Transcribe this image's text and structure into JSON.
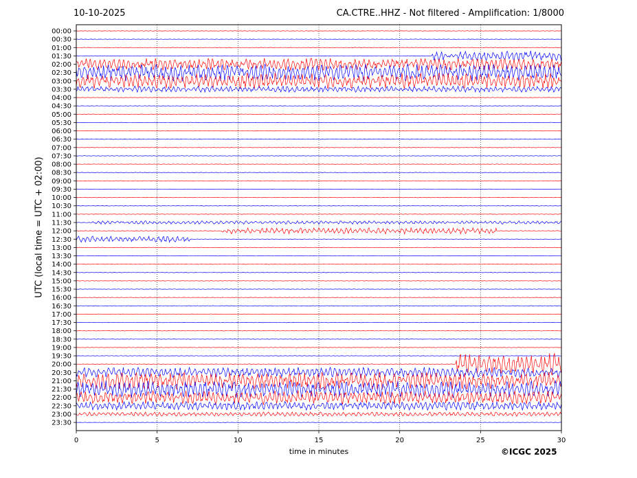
{
  "header": {
    "date": "10-10-2025",
    "title": "CA.CTRE..HHZ - Not filtered - Amplification: 1/8000"
  },
  "footer": {
    "copyright": "©ICGC 2025"
  },
  "chart_data": {
    "type": "line",
    "title": "CA.CTRE..HHZ - Not filtered - Amplification: 1/8000",
    "xlabel": "time in minutes",
    "ylabel": "UTC (local time = UTC + 02:00)",
    "xlim": [
      0,
      30
    ],
    "xticks": [
      0,
      5,
      10,
      15,
      20,
      25,
      30
    ],
    "grid": "vertical dotted lines at each x tick",
    "trace_colors": [
      "#ff0000",
      "#0000ff"
    ],
    "rows": [
      "00:00",
      "00:30",
      "01:00",
      "01:30",
      "02:00",
      "02:30",
      "03:00",
      "03:30",
      "04:00",
      "04:30",
      "05:00",
      "05:30",
      "06:00",
      "06:30",
      "07:00",
      "07:30",
      "08:00",
      "08:30",
      "09:00",
      "09:30",
      "10:00",
      "10:30",
      "11:00",
      "11:30",
      "12:00",
      "12:30",
      "13:00",
      "13:30",
      "14:00",
      "14:30",
      "15:00",
      "15:30",
      "16:00",
      "16:30",
      "17:00",
      "17:30",
      "18:00",
      "18:30",
      "19:00",
      "19:30",
      "20:00",
      "20:30",
      "21:00",
      "21:30",
      "22:00",
      "22:30",
      "23:00",
      "23:30"
    ],
    "activity": [
      {
        "row": "01:30",
        "from_min": 22,
        "to_min": 30,
        "level": 0.6
      },
      {
        "row": "02:00",
        "from_min": 0,
        "to_min": 30,
        "level": 0.7
      },
      {
        "row": "02:30",
        "from_min": 0,
        "to_min": 30,
        "level": 1.0
      },
      {
        "row": "03:00",
        "from_min": 0,
        "to_min": 30,
        "level": 0.9
      },
      {
        "row": "03:30",
        "from_min": 0,
        "to_min": 30,
        "level": 0.35
      },
      {
        "row": "11:30",
        "from_min": 1,
        "to_min": 30,
        "level": 0.2
      },
      {
        "row": "12:00",
        "from_min": 9,
        "to_min": 26,
        "level": 0.35
      },
      {
        "row": "12:30",
        "from_min": 0,
        "to_min": 7,
        "level": 0.35
      },
      {
        "row": "20:00",
        "from_min": 23.5,
        "to_min": 30,
        "level": 1.3
      },
      {
        "row": "20:30",
        "from_min": 0,
        "to_min": 30,
        "level": 0.6
      },
      {
        "row": "21:00",
        "from_min": 0,
        "to_min": 30,
        "level": 1.0
      },
      {
        "row": "21:30",
        "from_min": 0,
        "to_min": 30,
        "level": 1.0
      },
      {
        "row": "22:00",
        "from_min": 0,
        "to_min": 30,
        "level": 0.8
      },
      {
        "row": "22:30",
        "from_min": 0,
        "to_min": 30,
        "level": 0.5
      },
      {
        "row": "23:00",
        "from_min": 0,
        "to_min": 30,
        "level": 0.25
      }
    ]
  }
}
